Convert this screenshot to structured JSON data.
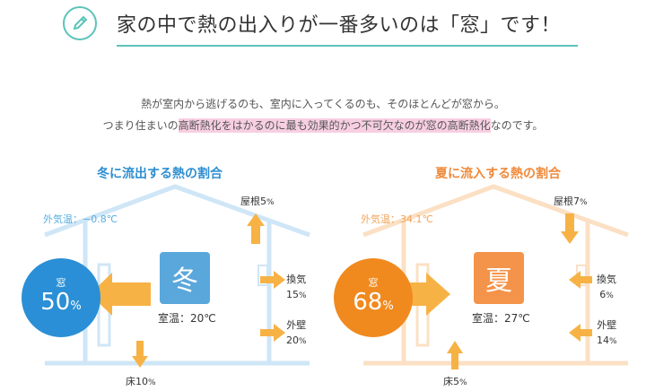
{
  "header": {
    "title": "家の中で熱の出入りが一番多いのは「窓」です！",
    "icon": "pencil-icon",
    "accent": "#5bc4b8"
  },
  "intro": {
    "line1": "熱が室内から逃げるのも、室内に入ってくるのも、そのほとんどが窓から。",
    "line2_pre": "つまり住まいの",
    "line2_highlight": "高断熱化をはかるのに最も効果的かつ不可欠なのが窓の高断熱化",
    "line2_post": "なのです。"
  },
  "winter": {
    "title": "冬に流出する熱の割合",
    "outside_temp": "外気温：−0.8℃",
    "season": "冬",
    "room_temp": "室温：20℃",
    "window": {
      "label": "窓",
      "value": "50",
      "unit": "%"
    },
    "roof": {
      "label": "屋根",
      "value": "5",
      "unit": "%"
    },
    "vent": {
      "label": "換気",
      "value": "15",
      "unit": "%"
    },
    "wall": {
      "label": "外壁",
      "value": "20",
      "unit": "%"
    },
    "floor": {
      "label": "床",
      "value": "10",
      "unit": "%"
    },
    "colors": {
      "main": "#2a8fd6",
      "house": "#cfe6f7",
      "arrow": "#f7b245"
    }
  },
  "summer": {
    "title": "夏に流入する熱の割合",
    "outside_temp": "外気温：34.1℃",
    "season": "夏",
    "room_temp": "室温：27℃",
    "window": {
      "label": "窓",
      "value": "68",
      "unit": "%"
    },
    "roof": {
      "label": "屋根",
      "value": "7",
      "unit": "%"
    },
    "vent": {
      "label": "換気",
      "value": "6",
      "unit": "%"
    },
    "wall": {
      "label": "外壁",
      "value": "14",
      "unit": "%"
    },
    "floor": {
      "label": "床",
      "value": "5",
      "unit": "%"
    },
    "colors": {
      "main": "#f08a1f",
      "house": "#fbe0c4",
      "arrow": "#f7b245"
    }
  }
}
